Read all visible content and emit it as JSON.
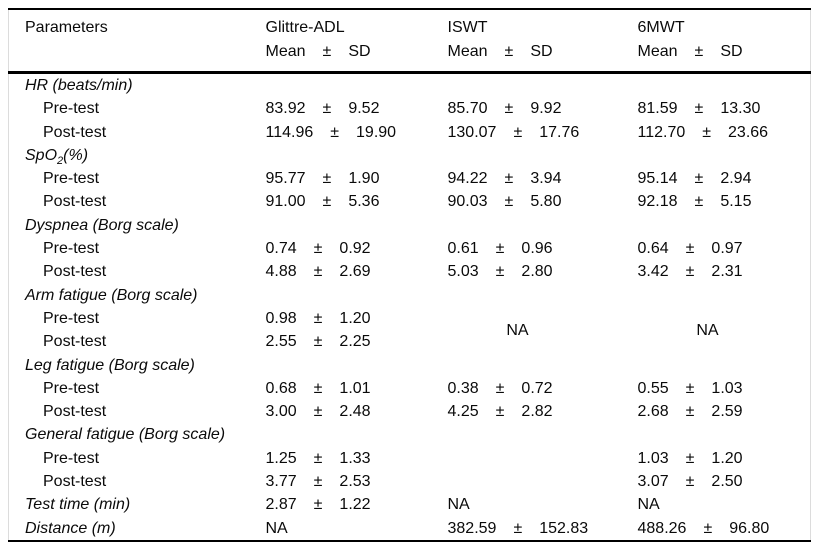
{
  "pm": "±",
  "header": {
    "parameters_label": "Parameters",
    "tests": [
      "Glittre-ADL",
      "ISWT",
      "6MWT"
    ],
    "mean_label": "Mean",
    "sd_label": "SD"
  },
  "rows": [
    {
      "type": "group",
      "label": "HR (beats/min)"
    },
    {
      "type": "sub",
      "label": "Pre-test",
      "glittre": {
        "mean": "83.92",
        "sd": "9.52"
      },
      "iswt": {
        "mean": "85.70",
        "sd": "9.92"
      },
      "mwt": {
        "mean": "81.59",
        "sd": "13.30"
      }
    },
    {
      "type": "sub",
      "label": "Post-test",
      "glittre": {
        "mean": "114.96",
        "sd": "19.90"
      },
      "iswt": {
        "mean": "130.07",
        "sd": "17.76"
      },
      "mwt": {
        "mean": "112.70",
        "sd": "23.66"
      }
    },
    {
      "type": "group",
      "label_main": "SpO",
      "label_sub": "2",
      "label_tail": "(%)"
    },
    {
      "type": "sub",
      "label": "Pre-test",
      "glittre": {
        "mean": "95.77",
        "sd": "1.90"
      },
      "iswt": {
        "mean": "94.22",
        "sd": "3.94"
      },
      "mwt": {
        "mean": "95.14",
        "sd": "2.94"
      }
    },
    {
      "type": "sub",
      "label": "Post-test",
      "glittre": {
        "mean": "91.00",
        "sd": "5.36"
      },
      "iswt": {
        "mean": "90.03",
        "sd": "5.80"
      },
      "mwt": {
        "mean": "92.18",
        "sd": "5.15"
      }
    },
    {
      "type": "group",
      "label": "Dyspnea (Borg scale)"
    },
    {
      "type": "sub",
      "label": "Pre-test",
      "glittre": {
        "mean": "0.74",
        "sd": "0.92"
      },
      "iswt": {
        "mean": "0.61",
        "sd": "0.96"
      },
      "mwt": {
        "mean": "0.64",
        "sd": "0.97"
      }
    },
    {
      "type": "sub",
      "label": "Post-test",
      "glittre": {
        "mean": "4.88",
        "sd": "2.69"
      },
      "iswt": {
        "mean": "5.03",
        "sd": "2.80"
      },
      "mwt": {
        "mean": "3.42",
        "sd": "2.31"
      }
    },
    {
      "type": "group",
      "label": "Arm fatigue (Borg scale)"
    },
    {
      "type": "sub",
      "label": "Pre-test",
      "glittre": {
        "mean": "0.98",
        "sd": "1.20"
      },
      "iswt": {
        "na": "NA"
      },
      "mwt": {
        "na": "NA"
      }
    },
    {
      "type": "sub",
      "label": "Post-test",
      "glittre": {
        "mean": "2.55",
        "sd": "2.25"
      }
    },
    {
      "type": "group",
      "label": "Leg fatigue (Borg scale)"
    },
    {
      "type": "sub",
      "label": "Pre-test",
      "glittre": {
        "mean": "0.68",
        "sd": "1.01"
      },
      "iswt": {
        "mean": "0.38",
        "sd": "0.72"
      },
      "mwt": {
        "mean": "0.55",
        "sd": "1.03"
      }
    },
    {
      "type": "sub",
      "label": "Post-test",
      "glittre": {
        "mean": "3.00",
        "sd": "2.48"
      },
      "iswt": {
        "mean": "4.25",
        "sd": "2.82"
      },
      "mwt": {
        "mean": "2.68",
        "sd": "2.59"
      }
    },
    {
      "type": "group",
      "label": "General fatigue (Borg scale)"
    },
    {
      "type": "sub",
      "label": "Pre-test",
      "glittre": {
        "mean": "1.25",
        "sd": "1.33"
      },
      "mwt": {
        "mean": "1.03",
        "sd": "1.20"
      }
    },
    {
      "type": "sub",
      "label": "Post-test",
      "glittre": {
        "mean": "3.77",
        "sd": "2.53"
      },
      "mwt": {
        "mean": "3.07",
        "sd": "2.50"
      }
    },
    {
      "type": "param",
      "label": "Test time (min)",
      "glittre": {
        "mean": "2.87",
        "sd": "1.22"
      },
      "iswt": {
        "na": "NA"
      },
      "mwt": {
        "na": "NA"
      }
    },
    {
      "type": "param",
      "label": "Distance (m)",
      "glittre": {
        "na": "NA"
      },
      "iswt": {
        "mean": "382.59",
        "sd": "152.83"
      },
      "mwt": {
        "mean": "488.26",
        "sd": "96.80"
      }
    }
  ]
}
